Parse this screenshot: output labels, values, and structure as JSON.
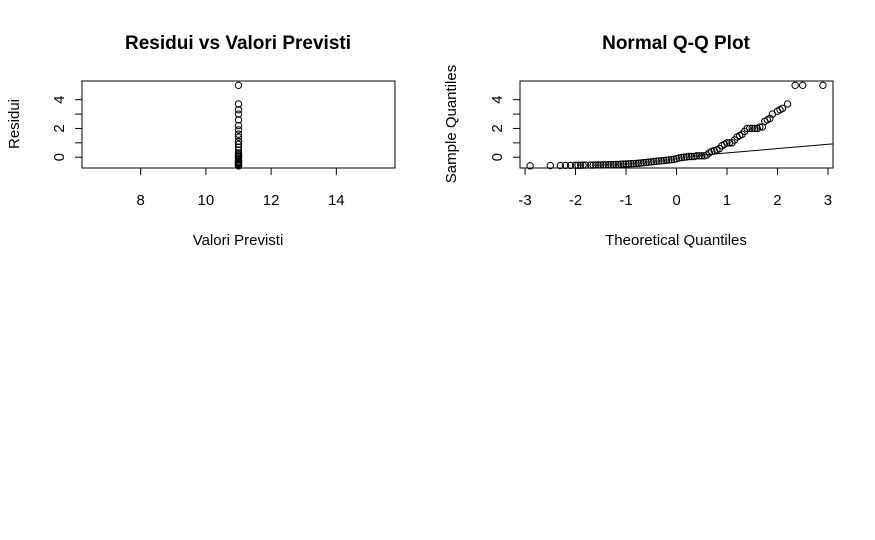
{
  "chart_data": [
    {
      "type": "scatter",
      "title": "Residui vs Valori Previsti",
      "xlabel": "Valori Previsti",
      "ylabel": "Residui",
      "xlim": [
        6.2,
        15.8
      ],
      "ylim": [
        -0.75,
        5.3
      ],
      "xticks": [
        8,
        10,
        12,
        14
      ],
      "yticks": [
        0,
        2,
        4
      ],
      "x": [
        11,
        11,
        11,
        11,
        11,
        11,
        11,
        11,
        11,
        11,
        11,
        11,
        11,
        11,
        11,
        11,
        11,
        11,
        11,
        11,
        11,
        11,
        11,
        11,
        11,
        11,
        11
      ],
      "y": [
        -0.6,
        -0.5,
        -0.4,
        -0.3,
        -0.2,
        -0.1,
        0,
        0.1,
        0.2,
        0.3,
        0.5,
        0.7,
        0.9,
        1.1,
        1.4,
        1.6,
        1.9,
        2.2,
        2.6,
        3.0,
        3.3,
        3.7,
        5.0,
        -0.55,
        -0.45,
        -0.35,
        0.05
      ],
      "grid": false
    },
    {
      "type": "scatter",
      "title": "Normal Q-Q Plot",
      "xlabel": "Theoretical Quantiles",
      "ylabel": "Sample Quantiles",
      "xlim": [
        -3.1,
        3.1
      ],
      "ylim": [
        -0.75,
        5.3
      ],
      "xticks": [
        -3,
        -2,
        -1,
        0,
        1,
        2,
        3
      ],
      "yticks": [
        0,
        2,
        4
      ],
      "x": [
        -2.9,
        -2.5,
        -2.3,
        -2.2,
        -2.1,
        -2.0,
        -1.95,
        -1.9,
        -1.85,
        -1.8,
        -1.7,
        -1.65,
        -1.6,
        -1.55,
        -1.5,
        -1.45,
        -1.4,
        -1.35,
        -1.3,
        -1.25,
        -1.2,
        -1.15,
        -1.1,
        -1.05,
        -1.0,
        -0.95,
        -0.9,
        -0.85,
        -0.8,
        -0.75,
        -0.7,
        -0.65,
        -0.6,
        -0.55,
        -0.5,
        -0.45,
        -0.4,
        -0.35,
        -0.3,
        -0.25,
        -0.2,
        -0.15,
        -0.1,
        -0.05,
        0.0,
        0.05,
        0.1,
        0.15,
        0.2,
        0.25,
        0.3,
        0.35,
        0.4,
        0.45,
        0.5,
        0.55,
        0.6,
        0.65,
        0.7,
        0.75,
        0.8,
        0.85,
        0.9,
        0.95,
        1.0,
        1.05,
        1.1,
        1.15,
        1.2,
        1.25,
        1.3,
        1.35,
        1.4,
        1.45,
        1.5,
        1.55,
        1.6,
        1.65,
        1.7,
        1.75,
        1.8,
        1.85,
        1.9,
        2.0,
        2.05,
        2.1,
        2.2,
        2.35,
        2.5,
        2.9
      ],
      "y": [
        -0.6,
        -0.58,
        -0.58,
        -0.57,
        -0.57,
        -0.56,
        -0.56,
        -0.56,
        -0.55,
        -0.55,
        -0.55,
        -0.55,
        -0.54,
        -0.54,
        -0.54,
        -0.53,
        -0.53,
        -0.52,
        -0.52,
        -0.51,
        -0.5,
        -0.5,
        -0.49,
        -0.48,
        -0.47,
        -0.46,
        -0.45,
        -0.44,
        -0.43,
        -0.42,
        -0.4,
        -0.38,
        -0.36,
        -0.34,
        -0.32,
        -0.3,
        -0.28,
        -0.26,
        -0.25,
        -0.23,
        -0.21,
        -0.19,
        -0.17,
        -0.15,
        -0.1,
        -0.05,
        -0.02,
        0.0,
        0.02,
        0.05,
        0.05,
        0.05,
        0.1,
        0.1,
        0.1,
        0.1,
        0.15,
        0.3,
        0.4,
        0.45,
        0.5,
        0.6,
        0.8,
        0.9,
        1.0,
        1.0,
        1.0,
        1.2,
        1.4,
        1.5,
        1.6,
        1.8,
        2.0,
        2.0,
        2.0,
        2.0,
        2.0,
        2.1,
        2.1,
        2.5,
        2.6,
        2.7,
        3.0,
        3.2,
        3.3,
        3.4,
        3.7,
        5.0,
        5.0,
        5.0
      ],
      "reference_line": {
        "intercept": 0.0,
        "slope": 0.3
      },
      "grid": false
    }
  ]
}
